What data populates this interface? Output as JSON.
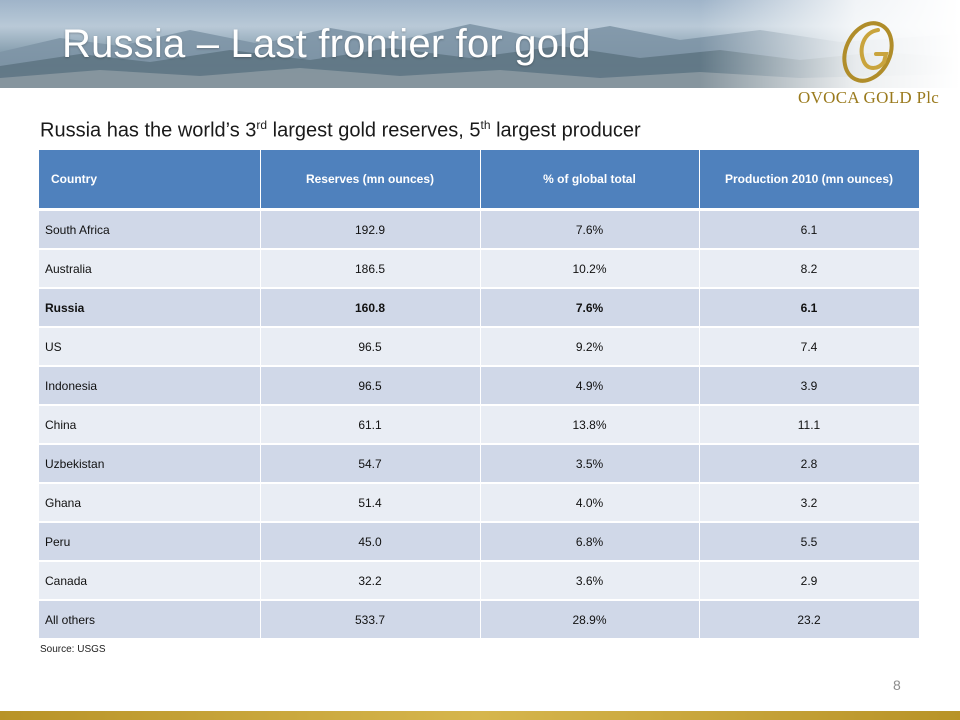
{
  "slide": {
    "title": "Russia – Last frontier for gold",
    "subtitle": {
      "part1": "Russia has the world’s 3",
      "sup1": "rd",
      "part2": " largest gold reserves, 5",
      "sup2": "th",
      "part3": " largest producer"
    },
    "logo_text": "OVOCA GOLD Plc",
    "source": "Source: USGS",
    "page_number": "8"
  },
  "table": {
    "headers": [
      "Country",
      "Reserves (mn ounces)",
      "% of global total",
      "Production 2010 (mn ounces)"
    ],
    "rows": [
      [
        "South Africa",
        "192.9",
        "7.6%",
        "6.1"
      ],
      [
        "Australia",
        "186.5",
        "10.2%",
        "8.2"
      ],
      [
        "Russia",
        "160.8",
        "7.6%",
        "6.1"
      ],
      [
        "US",
        "96.5",
        "9.2%",
        "7.4"
      ],
      [
        "Indonesia",
        "96.5",
        "4.9%",
        "3.9"
      ],
      [
        "China",
        "61.1",
        "13.8%",
        "11.1"
      ],
      [
        "Uzbekistan",
        "54.7",
        "3.5%",
        "2.8"
      ],
      [
        "Ghana",
        "51.4",
        "4.0%",
        "3.2"
      ],
      [
        "Peru",
        "45.0",
        "6.8%",
        "5.5"
      ],
      [
        "Canada",
        "32.2",
        "3.6%",
        "2.9"
      ],
      [
        "All others",
        "533.7",
        "28.9%",
        "23.2"
      ]
    ]
  },
  "colors": {
    "header_blue": "#4f81bd",
    "row_dark": "#d0d8e8",
    "row_light": "#e9edf4",
    "gold": "#b89327"
  },
  "icons": {
    "logo": "ovoca-gold-logo-mark",
    "banner": "mountain-landscape-image"
  }
}
